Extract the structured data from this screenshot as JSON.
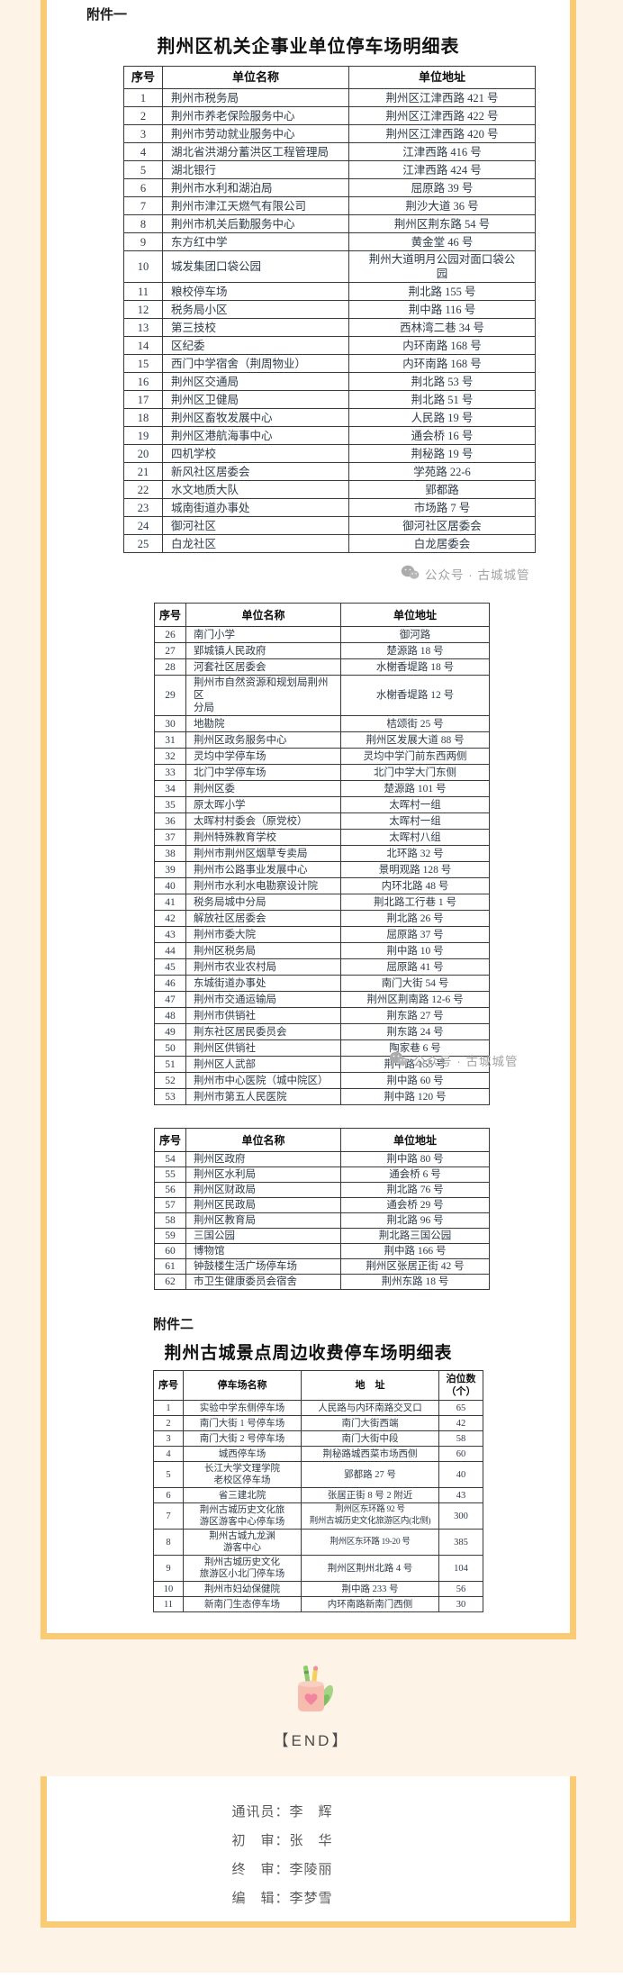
{
  "colors": {
    "background_cream": "#FDF4E7",
    "card_border_orange": "#FACB74",
    "table_text": "#2F3B49",
    "watermark_gray": "#A3A3A3"
  },
  "attachment1": {
    "label": "附件一",
    "title": "荆州区机关企事业单位停车场明细表"
  },
  "attachment2": {
    "label": "附件二",
    "title": "荆州古城景点周边收费停车场明细表"
  },
  "watermark": {
    "text": "公众号 · 古城城管"
  },
  "end_section": {
    "label": "【END】"
  },
  "credits": [
    {
      "role": "通讯员",
      "name": "李　辉"
    },
    {
      "role": "初　审",
      "name": "张　华"
    },
    {
      "role": "终　审",
      "name": "李陵丽"
    },
    {
      "role": "编　辑",
      "name": "李梦雪"
    }
  ],
  "unit_table": {
    "headers": [
      "序号",
      "单位名称",
      "单位地址"
    ],
    "part1_rows": [
      [
        1,
        "荆州市税务局",
        "荆州区江津西路 421 号"
      ],
      [
        2,
        "荆州市养老保险服务中心",
        "荆州区江津西路 422 号"
      ],
      [
        3,
        "荆州市劳动就业服务中心",
        "荆州区江津西路 420 号"
      ],
      [
        4,
        "湖北省洪湖分蓄洪区工程管理局",
        "江津西路 416 号"
      ],
      [
        5,
        "湖北银行",
        "江津西路 424 号"
      ],
      [
        6,
        "荆州市水利和湖泊局",
        "屈原路 39 号"
      ],
      [
        7,
        "荆州市津江天燃气有限公司",
        "荆沙大道 36 号"
      ],
      [
        8,
        "荆州市机关后勤服务中心",
        "荆州区荆东路 54 号"
      ],
      [
        9,
        "东方红中学",
        "黄金堂 46 号"
      ],
      [
        10,
        "城发集团口袋公园",
        "荆州大道明月公园对面口袋公\n园"
      ],
      [
        11,
        "粮校停车场",
        "荆北路 155 号"
      ],
      [
        12,
        "税务局小区",
        "荆中路 116 号"
      ],
      [
        13,
        "第三技校",
        "西林湾二巷 34 号"
      ],
      [
        14,
        "区纪委",
        "内环南路 168 号"
      ],
      [
        15,
        "西门中学宿舍（荆周物业）",
        "内环南路 168 号"
      ],
      [
        16,
        "荆州区交通局",
        "荆北路 53 号"
      ],
      [
        17,
        "荆州区卫健局",
        "荆北路 51 号"
      ],
      [
        18,
        "荆州区畜牧发展中心",
        "人民路 19 号"
      ],
      [
        19,
        "荆州区港航海事中心",
        "通会桥 16 号"
      ],
      [
        20,
        "四机学校",
        "荆秘路 19 号"
      ],
      [
        21,
        "新风社区居委会",
        "学苑路 22-6"
      ],
      [
        22,
        "水文地质大队",
        "郢都路"
      ],
      [
        23,
        "城南街道办事处",
        "市场路 7 号"
      ],
      [
        24,
        "御河社区",
        "御河社区居委会"
      ],
      [
        25,
        "白龙社区",
        "白龙居委会"
      ]
    ],
    "part2_rows": [
      [
        26,
        "南门小学",
        "御河路"
      ],
      [
        27,
        "郢城镇人民政府",
        "楚源路 18 号"
      ],
      [
        28,
        "河套社区居委会",
        "水榭香堤路 18 号"
      ],
      [
        29,
        "荆州市自然资源和规划局荆州区\n分局",
        "水榭香堤路 12 号"
      ],
      [
        30,
        "地勘院",
        "桔颂街 25 号"
      ],
      [
        31,
        "荆州区政务服务中心",
        "荆州区发展大道 88 号"
      ],
      [
        32,
        "灵均中学停车场",
        "灵均中学门前东西两侧"
      ],
      [
        33,
        "北门中学停车场",
        "北门中学大门东侧"
      ],
      [
        34,
        "荆州区委",
        "楚源路 101 号"
      ],
      [
        35,
        "原太晖小学",
        "太晖村一组"
      ],
      [
        36,
        "太晖村村委会（原党校）",
        "太晖村一组"
      ],
      [
        37,
        "荆州特殊教育学校",
        "太晖村八组"
      ],
      [
        38,
        "荆州市荆州区烟草专卖局",
        "北环路 32 号"
      ],
      [
        39,
        "荆州市公路事业发展中心",
        "景明观路 128 号"
      ],
      [
        40,
        "荆州市水利水电勘察设计院",
        "内环北路 48 号"
      ],
      [
        41,
        "税务局城中分局",
        "荆北路工行巷 1 号"
      ],
      [
        42,
        "解放社区居委会",
        "荆北路 26 号"
      ],
      [
        43,
        "荆州市委大院",
        "屈原路 37 号"
      ],
      [
        44,
        "荆州区税务局",
        "荆中路 10 号"
      ],
      [
        45,
        "荆州市农业农村局",
        "屈原路 41 号"
      ],
      [
        46,
        "东城街道办事处",
        "南门大街 54 号"
      ],
      [
        47,
        "荆州市交通运输局",
        "荆州区荆南路 12-6 号"
      ],
      [
        48,
        "荆州市供销社",
        "荆东路 27 号"
      ],
      [
        49,
        "荆东社区居民委员会",
        "荆东路 24 号"
      ],
      [
        50,
        "荆州区供销社",
        "陶家巷 6 号"
      ],
      [
        51,
        "荆州区人武部",
        "荆中路 155 号"
      ],
      [
        52,
        "荆州市中心医院（城中院区）",
        "荆中路 60 号"
      ],
      [
        53,
        "荆州市第五人民医院",
        "荆中路 120 号"
      ]
    ],
    "part3_rows": [
      [
        54,
        "荆州区政府",
        "荆中路 80 号"
      ],
      [
        55,
        "荆州区水利局",
        "通会桥 6 号"
      ],
      [
        56,
        "荆州区财政局",
        "荆北路 76 号"
      ],
      [
        57,
        "荆州区民政局",
        "通会桥 29 号"
      ],
      [
        58,
        "荆州区教育局",
        "荆北路 96 号"
      ],
      [
        59,
        "三国公园",
        "荆北路三国公园"
      ],
      [
        60,
        "博物馆",
        "荆中路 166 号"
      ],
      [
        61,
        "钟鼓楼生活广场停车场",
        "荆州区张居正街 42 号"
      ],
      [
        62,
        "市卫生健康委员会宿舍",
        "荆州东路 18 号"
      ]
    ]
  },
  "paid_table": {
    "headers": [
      "序号",
      "停车场名称",
      "地　址",
      "泊位数\n（个）"
    ],
    "rows": [
      [
        1,
        "实验中学东侧停车场",
        "人民路与内环南路交叉口",
        65
      ],
      [
        2,
        "南门大街 1 号停车场",
        "南门大街西端",
        42
      ],
      [
        3,
        "南门大街 2 号停车场",
        "南门大街中段",
        58
      ],
      [
        4,
        "城西停车场",
        "荆秘路城西菜市场西侧",
        60
      ],
      [
        5,
        "长江大学文理学院\n老校区停车场",
        "郢都路 27 号",
        40
      ],
      [
        6,
        "省三建北院",
        "张居正街 8 号 2 附近",
        43
      ],
      [
        7,
        "荆州古城历史文化旅\n游区游客中心停车场",
        "荆州区东环路 92 号\n荆州古城历史文化旅游区内(北侧)",
        300
      ],
      [
        8,
        "荆州古城九龙渊\n游客中心",
        "荆州区东环路 19-20 号",
        385
      ],
      [
        9,
        "荆州古城历史文化\n旅游区小北门停车场",
        "荆州区荆州北路 4 号",
        104
      ],
      [
        10,
        "荆州市妇幼保健院",
        "荆中路 233 号",
        56
      ],
      [
        11,
        "新南门生态停车场",
        "内环南路新南门西侧",
        30
      ]
    ]
  }
}
